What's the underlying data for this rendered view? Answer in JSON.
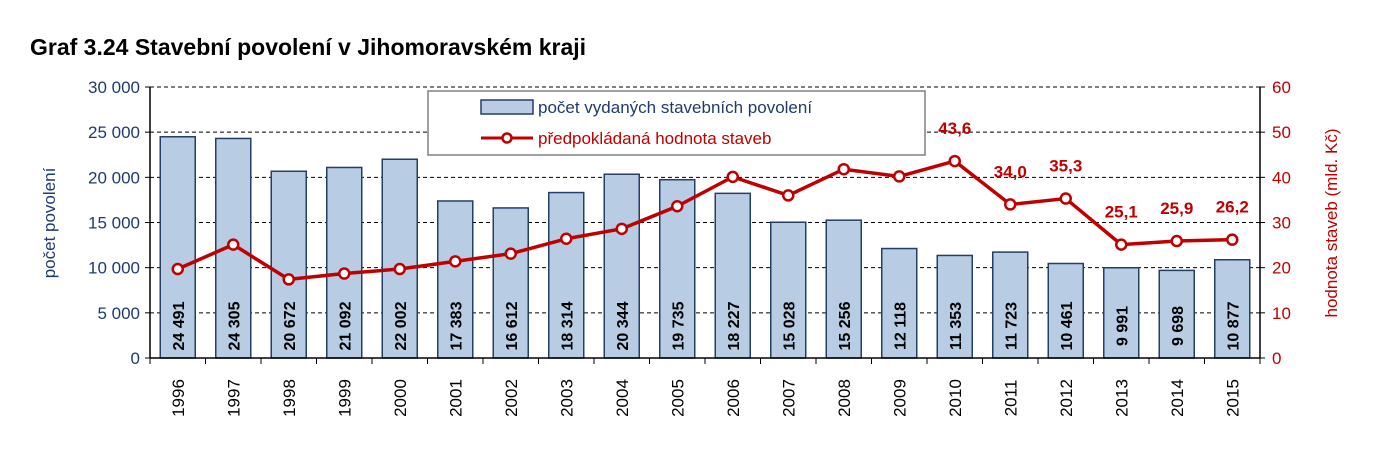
{
  "title": "Graf 3.24 Stavební povolení v Jihomoravském kraji",
  "colors": {
    "bar_fill": "#b8cce4",
    "bar_stroke": "#243f66",
    "line": "#c00000",
    "left_axis_text": "#1f3b6e",
    "right_axis_text": "#c00000",
    "grid": "#000000"
  },
  "chart_data": {
    "type": "bar",
    "categories": [
      "1996",
      "1997",
      "1998",
      "1999",
      "2000",
      "2001",
      "2002",
      "2003",
      "2004",
      "2005",
      "2006",
      "2007",
      "2008",
      "2009",
      "2010",
      "2011",
      "2012",
      "2013",
      "2014",
      "2015"
    ],
    "series": [
      {
        "name": "počet vydaných stavebních povolení",
        "type": "bar",
        "axis": "left",
        "values": [
          24491,
          24305,
          20672,
          21092,
          22002,
          17383,
          16612,
          18314,
          20344,
          19735,
          18227,
          15028,
          15256,
          12118,
          11353,
          11723,
          10461,
          9991,
          9698,
          10877
        ],
        "labels": [
          "24 491",
          "24 305",
          "20 672",
          "21 092",
          "22 002",
          "17 383",
          "16 612",
          "18 314",
          "20 344",
          "19 735",
          "18 227",
          "15 028",
          "15 256",
          "12 118",
          "11 353",
          "11 723",
          "10 461",
          "9 991",
          "9 698",
          "10 877"
        ]
      },
      {
        "name": "předpokládaná hodnota staveb",
        "type": "line",
        "axis": "right",
        "values": [
          19.7,
          25.1,
          17.4,
          18.7,
          19.7,
          21.4,
          23.1,
          26.4,
          28.6,
          33.6,
          40.1,
          36.0,
          41.8,
          40.2,
          43.6,
          34.0,
          35.3,
          25.1,
          25.9,
          26.2
        ],
        "data_labels": [
          {
            "category": "2010",
            "text": "43,6"
          },
          {
            "category": "2011",
            "text": "34,0"
          },
          {
            "category": "2012",
            "text": "35,3"
          },
          {
            "category": "2013",
            "text": "25,1"
          },
          {
            "category": "2014",
            "text": "25,9"
          },
          {
            "category": "2015",
            "text": "26,2"
          }
        ]
      }
    ],
    "y_left": {
      "label": "počet povolení",
      "range": [
        0,
        30000
      ],
      "ticks": [
        0,
        5000,
        10000,
        15000,
        20000,
        25000,
        30000
      ],
      "tick_labels": [
        "0",
        "5 000",
        "10 000",
        "15 000",
        "20 000",
        "25 000",
        "30 000"
      ]
    },
    "y_right": {
      "label": "hodnota staveb  (mld. Kč)",
      "range": [
        0,
        60
      ],
      "ticks": [
        0,
        10,
        20,
        30,
        40,
        50,
        60
      ],
      "tick_labels": [
        "0",
        "10",
        "20",
        "30",
        "40",
        "50",
        "60"
      ]
    },
    "grid": "dashed horizontal",
    "legend_position": "top-center"
  }
}
